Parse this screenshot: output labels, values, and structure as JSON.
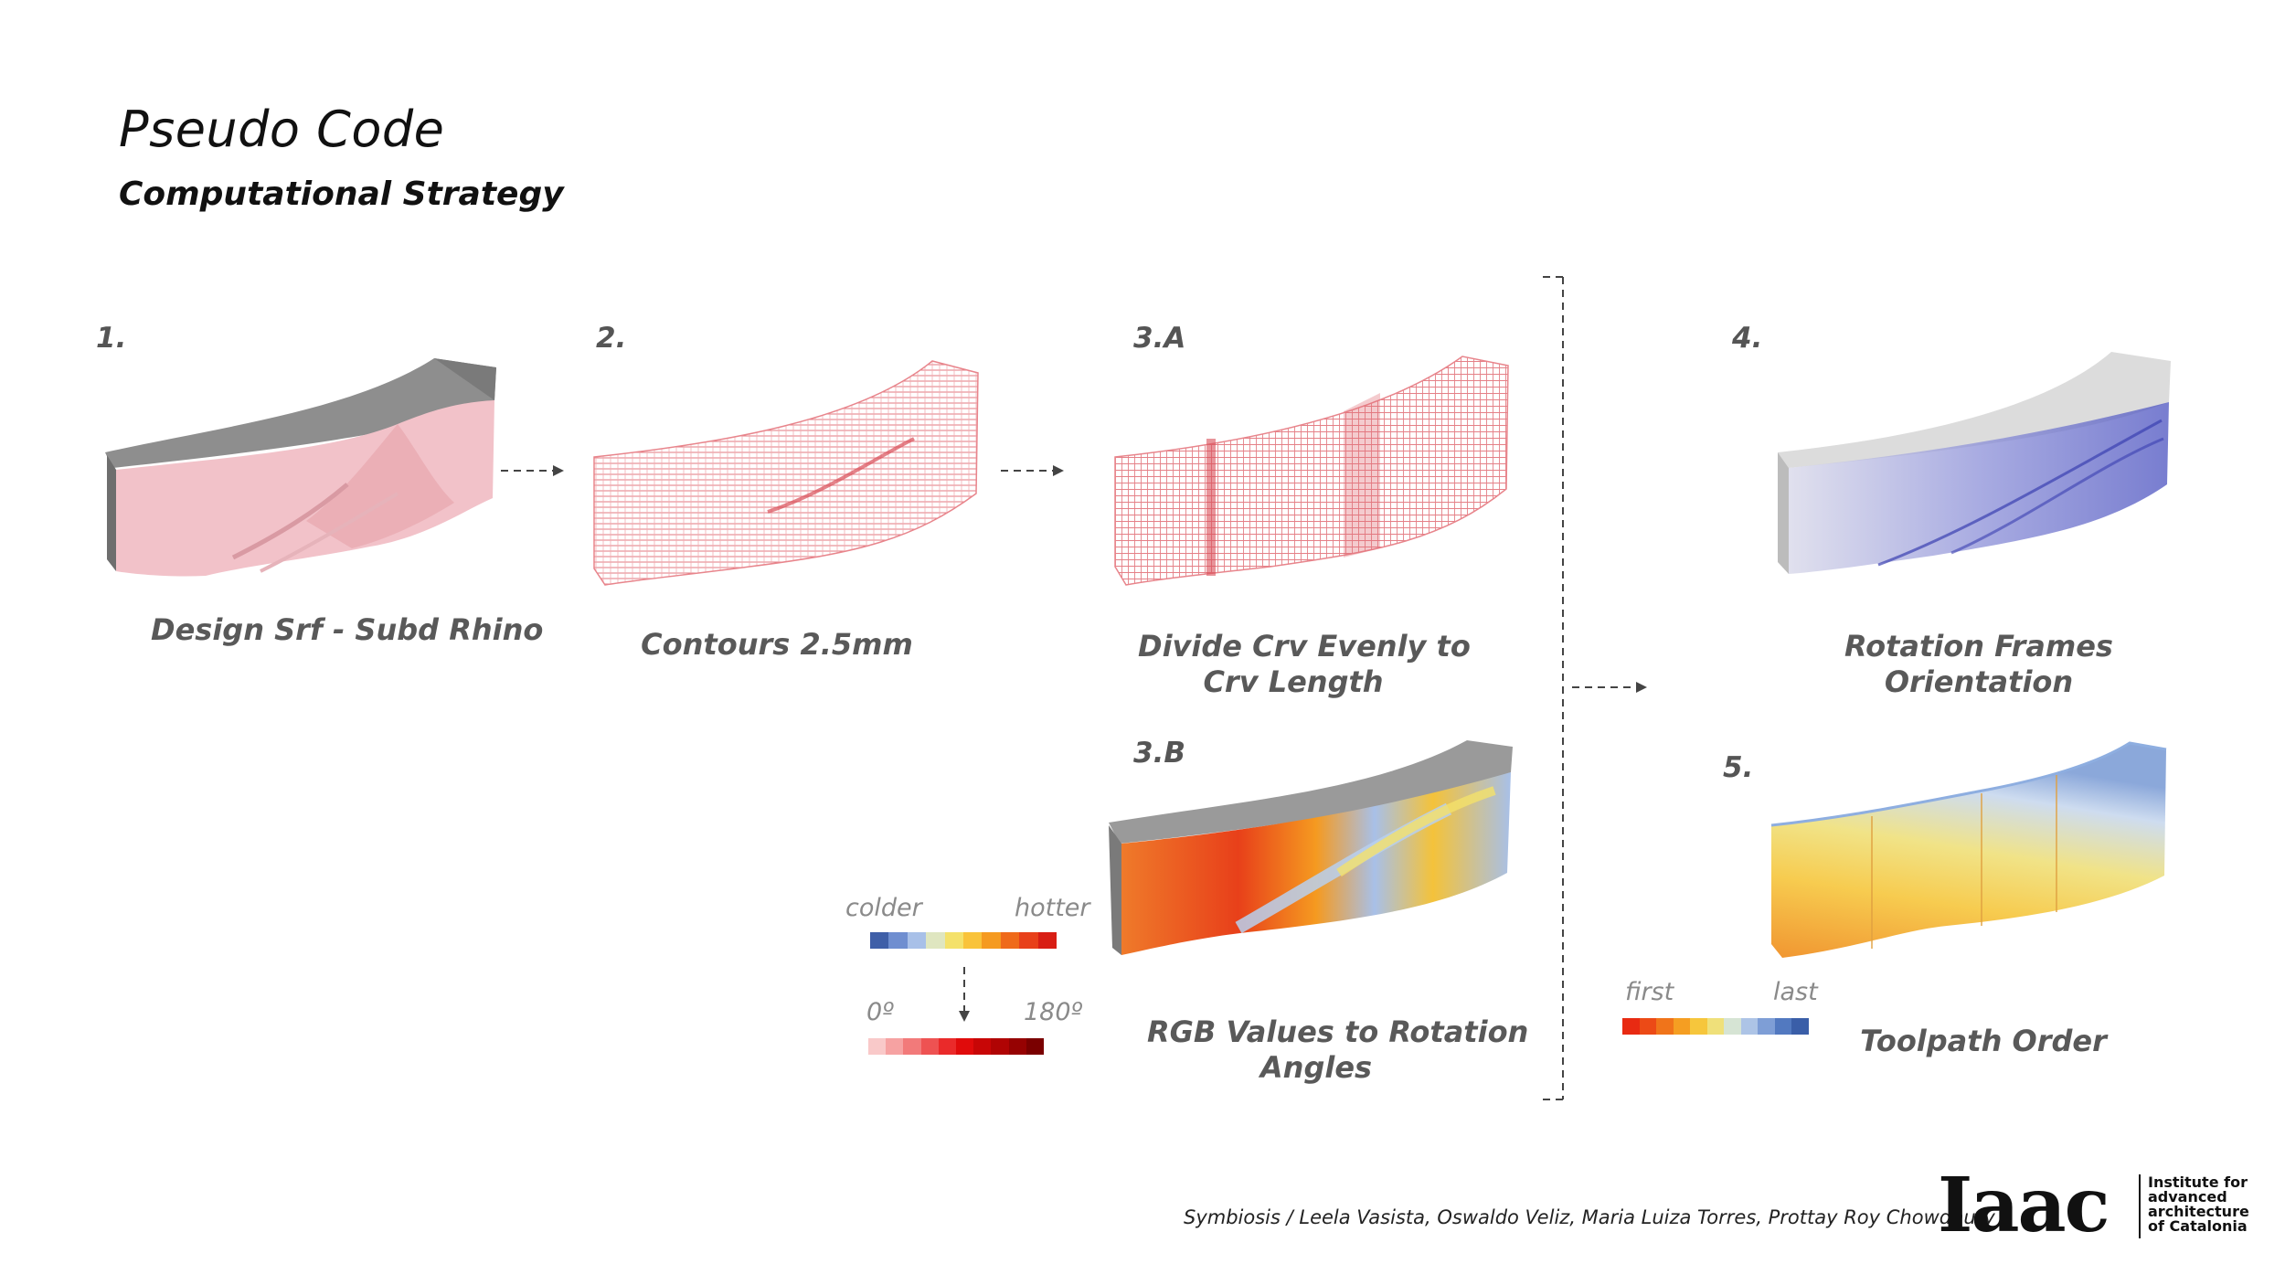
{
  "title": "Pseudo Code",
  "subtitle": "Computational Strategy",
  "steps": {
    "s1": {
      "number": "1.",
      "caption": "Design Srf - Subd Rhino"
    },
    "s2": {
      "number": "2.",
      "caption": "Contours 2.5mm"
    },
    "s3a": {
      "number": "3.A",
      "caption_line1": "Divide Crv Evenly to",
      "caption_line2": "Crv Length"
    },
    "s3b": {
      "number": "3.B",
      "caption_line1": "RGB Values to Rotation",
      "caption_line2": "Angles"
    },
    "s4": {
      "number": "4.",
      "caption_line1": "Rotation Frames",
      "caption_line2": "Orientation"
    },
    "s5": {
      "number": "5.",
      "caption": "Toolpath Order"
    }
  },
  "temperature_scale": {
    "low_label": "colder",
    "high_label": "hotter",
    "colors": [
      "#3f5fa8",
      "#6f8ed0",
      "#a8c0e8",
      "#dfe6c0",
      "#f4e16a",
      "#f9c33a",
      "#f59a20",
      "#ef6a1a",
      "#e8401a",
      "#d81e14"
    ]
  },
  "angle_scale": {
    "low_label": "0º",
    "high_label": "180º",
    "colors": [
      "#f9c9c9",
      "#f6a2a2",
      "#f27a7a",
      "#ee5252",
      "#ea2a2a",
      "#e00b0b",
      "#c80606",
      "#b00404",
      "#960202",
      "#7a0000"
    ]
  },
  "order_scale": {
    "low_label": "first",
    "high_label": "last",
    "colors": [
      "#e82a12",
      "#ec4a16",
      "#f0741a",
      "#f59e22",
      "#f6c63c",
      "#efe07a",
      "#d6e4d4",
      "#adc4e6",
      "#7e9ed6",
      "#5279c0",
      "#3a5ea8"
    ]
  },
  "credits": "Symbiosis / Leela Vasista, Oswaldo Veliz, Maria Luiza Torres, Prottay Roy Chowdhury",
  "logo": {
    "mark": "Iaac",
    "line1": "Institute for",
    "line2": "advanced",
    "line3": "architecture",
    "line4": "of Catalonia"
  },
  "colors": {
    "surface_pink": "#f2c2c9",
    "contour_red": "#e06a72",
    "frame_blue": "#5a63c8",
    "surface_grey": "#9a9a9a"
  }
}
